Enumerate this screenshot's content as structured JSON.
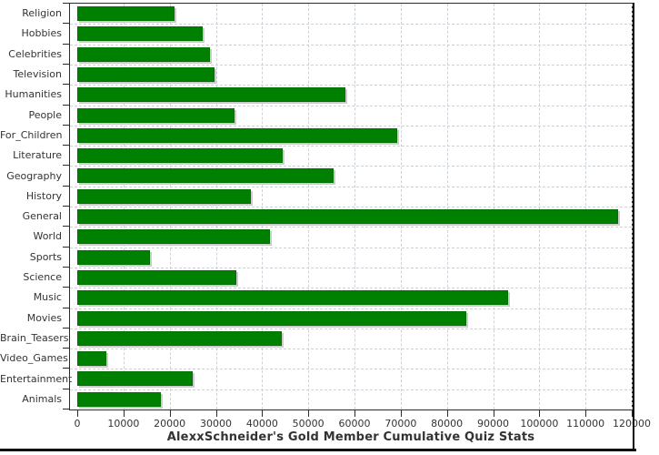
{
  "chart_data": {
    "type": "bar",
    "orientation": "horizontal",
    "title": "AlexxSchneider's Gold Member Cumulative Quiz Stats",
    "xlabel": "",
    "ylabel": "",
    "categories": [
      "Religion",
      "Hobbies",
      "Celebrities",
      "Television",
      "Humanities",
      "People",
      "For_Children",
      "Literature",
      "Geography",
      "History",
      "General",
      "World",
      "Sports",
      "Science",
      "Music",
      "Movies",
      "Brain_Teasers",
      "Video_Games",
      "Entertainment",
      "Animals"
    ],
    "values": [
      21000,
      27200,
      28800,
      29700,
      58000,
      34000,
      69300,
      44400,
      55500,
      37600,
      117000,
      41800,
      15800,
      34400,
      93300,
      84200,
      44300,
      6300,
      25000,
      18000
    ],
    "x_ticks": [
      0,
      10000,
      20000,
      30000,
      40000,
      50000,
      60000,
      70000,
      80000,
      90000,
      100000,
      110000,
      120000
    ],
    "xlim": [
      0,
      122000
    ],
    "grid": true,
    "legend": "none",
    "colors": {
      "bar": "#008000",
      "bar_edge": "#027002",
      "shadow": "#cccccc",
      "gridline": "#ccd2d8",
      "axis": "#2b2b2b",
      "text": "#333333",
      "frame": "#0a0a0a",
      "background": "#ffffff"
    }
  }
}
